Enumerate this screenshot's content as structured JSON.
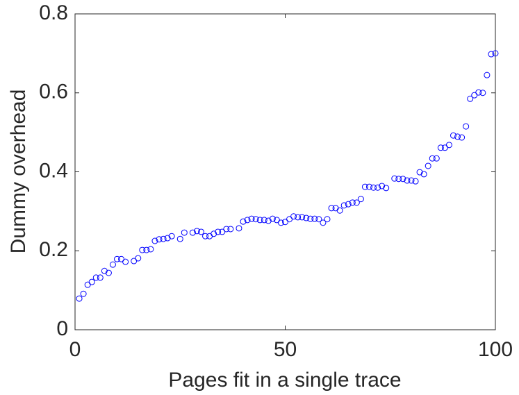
{
  "chart_data": {
    "type": "scatter",
    "x_label": "Pages fit in a single trace",
    "y_label": "Dummy overhead",
    "color": "#0000ff",
    "xlim": [
      0,
      100
    ],
    "xticks": [
      0,
      50,
      100
    ],
    "ylim": [
      0,
      0.8
    ],
    "yticks": [
      0,
      0.2,
      0.4,
      0.6,
      0.8
    ],
    "grid": false,
    "x": [
      1,
      2,
      3,
      4,
      5,
      6,
      7,
      8,
      9,
      10,
      11,
      12,
      14,
      15,
      16,
      17,
      18,
      19,
      20,
      21,
      22,
      23,
      25,
      26,
      28,
      29,
      30,
      31,
      32,
      33,
      34,
      35,
      36,
      37,
      39,
      40,
      41,
      42,
      43,
      44,
      45,
      46,
      47,
      48,
      49,
      50,
      51,
      52,
      53,
      54,
      55,
      56,
      57,
      58,
      59,
      60,
      61,
      62,
      63,
      64,
      65,
      66,
      67,
      68,
      69,
      70,
      71,
      72,
      73,
      74,
      76,
      77,
      78,
      79,
      80,
      81,
      82,
      83,
      84,
      85,
      86,
      87,
      88,
      89,
      90,
      91,
      92,
      93,
      94,
      95,
      96,
      97,
      98,
      99,
      100
    ],
    "values": [
      0.079,
      0.091,
      0.114,
      0.121,
      0.132,
      0.132,
      0.149,
      0.144,
      0.165,
      0.179,
      0.179,
      0.172,
      0.174,
      0.181,
      0.202,
      0.202,
      0.204,
      0.225,
      0.229,
      0.23,
      0.232,
      0.237,
      0.23,
      0.246,
      0.246,
      0.25,
      0.248,
      0.237,
      0.237,
      0.243,
      0.248,
      0.248,
      0.255,
      0.255,
      0.257,
      0.274,
      0.278,
      0.281,
      0.28,
      0.278,
      0.278,
      0.276,
      0.281,
      0.278,
      0.271,
      0.273,
      0.28,
      0.287,
      0.285,
      0.285,
      0.283,
      0.281,
      0.281,
      0.28,
      0.271,
      0.28,
      0.308,
      0.308,
      0.302,
      0.315,
      0.318,
      0.322,
      0.322,
      0.331,
      0.362,
      0.362,
      0.36,
      0.36,
      0.364,
      0.359,
      0.383,
      0.382,
      0.382,
      0.378,
      0.378,
      0.376,
      0.399,
      0.394,
      0.415,
      0.434,
      0.434,
      0.461,
      0.461,
      0.468,
      0.492,
      0.489,
      0.487,
      0.515,
      0.585,
      0.594,
      0.601,
      0.6,
      0.645,
      0.698,
      0.7
    ]
  }
}
